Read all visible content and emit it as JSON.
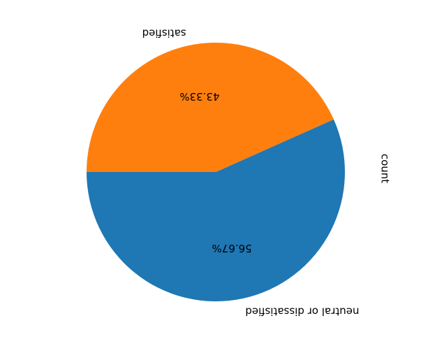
{
  "chart_data": {
    "type": "pie",
    "orientation": "rotated 180 degrees",
    "categories": [
      "neutral or dissatisfied",
      "satisfied"
    ],
    "values": [
      56.67,
      43.33
    ],
    "autopct_labels": [
      "56.67%",
      "43.33%"
    ],
    "ylabel": "count",
    "colors": [
      "#1f77b4",
      "#ff7f0e"
    ],
    "start_angle_deg": 0,
    "counterclockwise": true,
    "legend": "none"
  }
}
